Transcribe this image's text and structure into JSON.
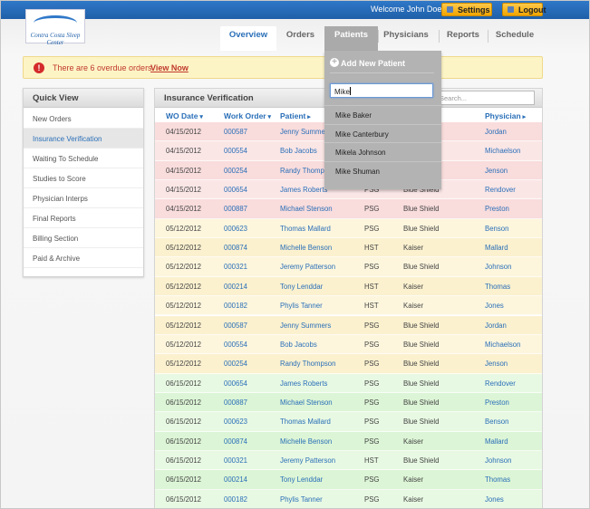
{
  "header": {
    "logo": "Contra Costa Sleep Center",
    "welcome": "Welcome John Doe",
    "buttons": [
      "Settings",
      "Logout"
    ]
  },
  "nav": {
    "tabs": [
      "Overview",
      "Orders",
      "Patients",
      "Physicians",
      "Reports",
      "Schedule"
    ]
  },
  "alert": {
    "text": "There are 6 overdue orders.",
    "link": "View Now"
  },
  "sidebar": {
    "title": "Quick View",
    "items": [
      "New Orders",
      "Insurance Verification",
      "Waiting To Schedule",
      "Studies to Score",
      "Physician Interps",
      "Final Reports",
      "Billing Section",
      "Paid & Archive"
    ]
  },
  "table": {
    "title": "Insurance Verification",
    "search_placeholder": "Search...",
    "columns": [
      "WO Date",
      "Work Order",
      "Patient",
      null,
      null,
      "Physician"
    ],
    "rows": [
      [
        "04/15/2012",
        "000587",
        "Jenny Summers",
        null,
        null,
        "Jordan"
      ],
      [
        "04/15/2012",
        "000554",
        "Bob Jacobs",
        null,
        null,
        "Michaelson"
      ],
      [
        "04/15/2012",
        "000254",
        "Randy Thompson",
        null,
        null,
        "Jenson"
      ],
      [
        "04/15/2012",
        "000654",
        "James Roberts",
        "PSG",
        "Blue Shield",
        "Rendover"
      ],
      [
        "04/15/2012",
        "000887",
        "Michael Stenson",
        "PSG",
        "Blue Shield",
        "Preston"
      ],
      [
        "05/12/2012",
        "000623",
        "Thomas Mallard",
        "PSG",
        "Blue Shield",
        "Benson"
      ],
      [
        "05/12/2012",
        "000874",
        "Michelle Benson",
        "HST",
        "Kaiser",
        "Mallard"
      ],
      [
        "05/12/2012",
        "000321",
        "Jeremy Patterson",
        "PSG",
        "Blue Shield",
        "Johnson"
      ],
      [
        "05/12/2012",
        "000214",
        "Tony Lenddar",
        "HST",
        "Kaiser",
        "Thomas"
      ],
      [
        "05/12/2012",
        "000182",
        "Phylis Tanner",
        "HST",
        "Kaiser",
        "Jones"
      ],
      [
        "05/12/2012",
        "000587",
        "Jenny Summers",
        "PSG",
        "Blue Shield",
        "Jordan"
      ],
      [
        "05/12/2012",
        "000554",
        "Bob Jacobs",
        "PSG",
        "Blue Shield",
        "Michaelson"
      ],
      [
        "05/12/2012",
        "000254",
        "Randy Thompson",
        "PSG",
        "Blue Shield",
        "Jenson"
      ],
      [
        "06/15/2012",
        "000654",
        "James Roberts",
        "PSG",
        "Blue Shield",
        "Rendover"
      ],
      [
        "06/15/2012",
        "000887",
        "Michael Stenson",
        "PSG",
        "Blue Shield",
        "Preston"
      ],
      [
        "06/15/2012",
        "000623",
        "Thomas Mallard",
        "PSG",
        "Blue Shield",
        "Benson"
      ],
      [
        "06/15/2012",
        "000874",
        "Michelle Benson",
        "PSG",
        "Kaiser",
        "Mallard"
      ],
      [
        "06/15/2012",
        "000321",
        "Jeremy Patterson",
        "HST",
        "Blue Shield",
        "Johnson"
      ],
      [
        "06/15/2012",
        "000214",
        "Tony Lenddar",
        "PSG",
        "Kaiser",
        "Thomas"
      ],
      [
        "06/15/2012",
        "000182",
        "Phylis Tanner",
        "PSG",
        "Kaiser",
        "Jones"
      ]
    ]
  },
  "dropdown": {
    "action": "Add New Patient",
    "query": "Mike",
    "results": [
      "Mike Baker",
      "Mike Canterbury",
      "Mikela Johnson",
      "Mike Shuman"
    ]
  }
}
